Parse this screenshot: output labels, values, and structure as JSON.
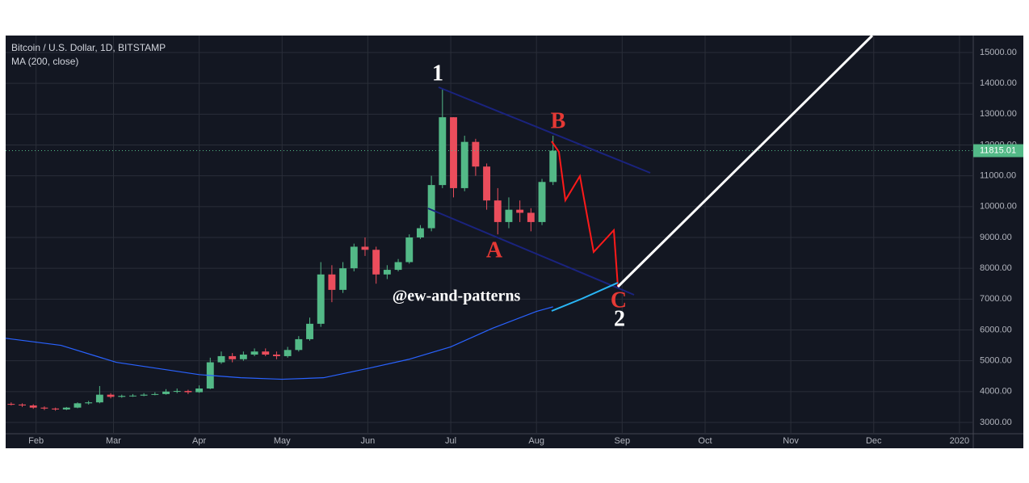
{
  "chart_data": {
    "type": "candlestick",
    "title": "Bitcoin / U.S. Dollar, 1D, BITSTAMP",
    "x": [
      22,
      26,
      30,
      34,
      38,
      42,
      46,
      50,
      54,
      58,
      62,
      66,
      70,
      74,
      78,
      82,
      86,
      90,
      94,
      98,
      102,
      106,
      110,
      114,
      118,
      122,
      126,
      130,
      134,
      138,
      142,
      146,
      150,
      154,
      158,
      162,
      166,
      170,
      174,
      178,
      182,
      186,
      190,
      194,
      198,
      202,
      206,
      210,
      214,
      218
    ],
    "open": [
      3600,
      3580,
      3550,
      3480,
      3450,
      3420,
      3480,
      3620,
      3650,
      3900,
      3830,
      3860,
      3870,
      3900,
      3920,
      4000,
      4020,
      3980,
      4100,
      4950,
      5150,
      5050,
      5200,
      5300,
      5200,
      5150,
      5350,
      5700,
      6200,
      7800,
      7300,
      8000,
      8700,
      8600,
      7800,
      7950,
      8200,
      9000,
      9300,
      10700,
      12900,
      10600,
      12100,
      11300,
      10200,
      9500,
      9900,
      9800,
      9500,
      10800
    ],
    "high": [
      3650,
      3620,
      3590,
      3520,
      3480,
      3500,
      3650,
      3700,
      4180,
      3950,
      3900,
      3920,
      3950,
      3980,
      4080,
      4100,
      4060,
      4200,
      5100,
      5300,
      5250,
      5300,
      5400,
      5400,
      5300,
      5450,
      5800,
      6400,
      8200,
      8100,
      8200,
      8800,
      9000,
      8700,
      8100,
      8300,
      9100,
      9400,
      11000,
      13800,
      12900,
      12300,
      12200,
      11400,
      10600,
      10300,
      10200,
      9950,
      10900,
      12300
    ],
    "low": [
      3550,
      3500,
      3440,
      3400,
      3380,
      3400,
      3460,
      3580,
      3620,
      3780,
      3800,
      3830,
      3850,
      3880,
      3900,
      3950,
      3920,
      3960,
      4080,
      4900,
      4950,
      5000,
      5150,
      5150,
      5050,
      5100,
      5300,
      5650,
      6100,
      6900,
      7200,
      7900,
      8400,
      7500,
      7650,
      7900,
      8150,
      8950,
      9200,
      10600,
      10300,
      10500,
      11000,
      9900,
      9100,
      9300,
      9500,
      9200,
      9400,
      10700
    ],
    "close": [
      3580,
      3550,
      3480,
      3450,
      3420,
      3480,
      3620,
      3650,
      3900,
      3830,
      3860,
      3870,
      3900,
      3920,
      4000,
      4020,
      3980,
      4100,
      4950,
      5150,
      5050,
      5200,
      5300,
      5200,
      5150,
      5350,
      5700,
      6200,
      7800,
      7300,
      8000,
      8700,
      8600,
      7800,
      7950,
      8200,
      9000,
      9300,
      10700,
      12900,
      10600,
      12100,
      11300,
      10200,
      9500,
      9900,
      9800,
      9500,
      10800,
      11815
    ],
    "up_color": "#53b987",
    "down_color": "#eb4d5c",
    "ma": {
      "name": "MA (200, close)",
      "color": "#2962ff",
      "x": [
        20,
        40,
        60,
        90,
        105,
        120,
        135,
        151,
        166,
        181,
        196,
        212,
        218
      ],
      "values": [
        5730,
        5500,
        4950,
        4550,
        4450,
        4400,
        4450,
        4750,
        5050,
        5450,
        6050,
        6600,
        6750
      ]
    },
    "last_price": 11815.01,
    "annotations": [
      "1",
      "B",
      "A",
      "C",
      "2",
      "@ew-and-patterns"
    ],
    "xlim": [
      20,
      370
    ],
    "ylim": [
      2633,
      15550
    ],
    "xticks": [
      {
        "value": 31,
        "label": "Feb"
      },
      {
        "value": 59,
        "label": "Mar"
      },
      {
        "value": 90,
        "label": "Apr"
      },
      {
        "value": 120,
        "label": "May"
      },
      {
        "value": 151,
        "label": "Jun"
      },
      {
        "value": 181,
        "label": "Jul"
      },
      {
        "value": 212,
        "label": "Aug"
      },
      {
        "value": 243,
        "label": "Sep"
      },
      {
        "value": 273,
        "label": "Oct"
      },
      {
        "value": 304,
        "label": "Nov"
      },
      {
        "value": 334,
        "label": "Dec"
      },
      {
        "value": 365,
        "label": "2020"
      }
    ],
    "yticks": [
      {
        "value": 3000,
        "label": "3000.00"
      },
      {
        "value": 4000,
        "label": "4000.00"
      },
      {
        "value": 5000,
        "label": "5000.00"
      },
      {
        "value": 6000,
        "label": "6000.00"
      },
      {
        "value": 7000,
        "label": "7000.00"
      },
      {
        "value": 8000,
        "label": "8000.00"
      },
      {
        "value": 9000,
        "label": "9000.00"
      },
      {
        "value": 10000,
        "label": "10000.00"
      },
      {
        "value": 11000,
        "label": "11000.00"
      },
      {
        "value": 12000,
        "label": "12000.00"
      },
      {
        "value": 13000,
        "label": "13000.00"
      },
      {
        "value": 14000,
        "label": "14000.00"
      },
      {
        "value": 15000,
        "label": "15000.00"
      }
    ],
    "grid": true
  }
}
